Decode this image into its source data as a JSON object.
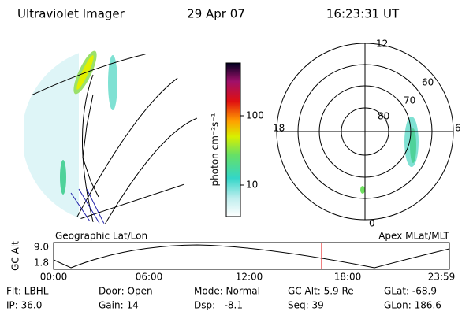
{
  "header": {
    "title": "Ultraviolet Imager",
    "date": "29 Apr 07",
    "time": "16:23:31 UT"
  },
  "colorbar": {
    "label": "photon cm⁻²s⁻¹",
    "ticks": [
      "100",
      "10"
    ]
  },
  "polar": {
    "labels": [
      "12",
      "60",
      "70",
      "80",
      "18",
      "6",
      "0"
    ]
  },
  "left_panel_label": "Geographic Lat/Lon",
  "right_panel_label": "Apex MLat/MLT",
  "altitude": {
    "label": "GC Alt",
    "yticks": [
      "9.0",
      "1.8"
    ],
    "xticks": [
      "00:00",
      "06:00",
      "12:00",
      "18:00",
      "23:59"
    ]
  },
  "info": [
    [
      "Flt: LBHL",
      "Door: Open",
      "Mode: Normal",
      "GC Alt: 5.9 Re",
      "GLat: -68.9"
    ],
    [
      "IP: 36.0",
      "Gain: 14",
      "Dsp:   -8.1",
      "Seq: 39",
      "GLon: 186.6"
    ]
  ]
}
